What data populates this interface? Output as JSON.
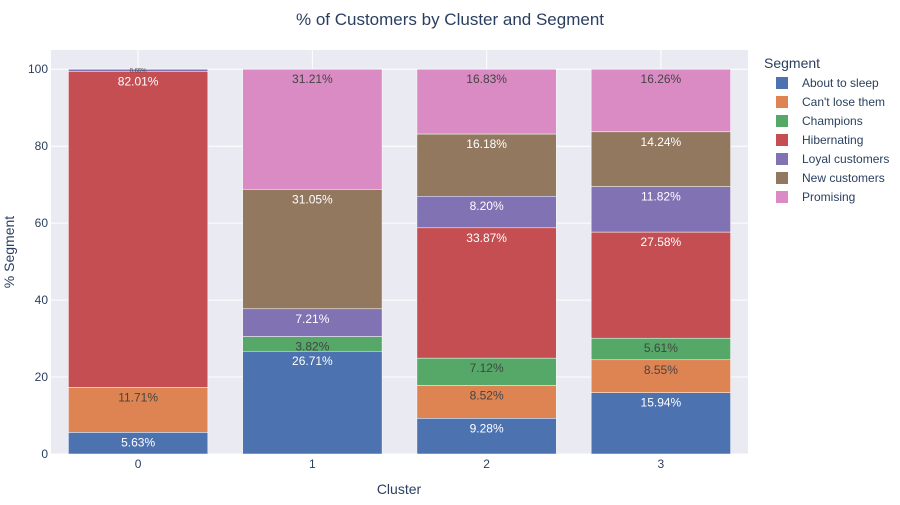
{
  "chart_data": {
    "type": "bar",
    "stacked": true,
    "title": "% of Customers by Cluster and Segment",
    "xlabel": "Cluster",
    "ylabel": "% Segment",
    "ylim": [
      0,
      105
    ],
    "yticks": [
      0,
      20,
      40,
      60,
      80,
      100
    ],
    "grid": true,
    "legend_title": "Segment",
    "legend_position": "right",
    "categories": [
      "0",
      "1",
      "2",
      "3"
    ],
    "series": [
      {
        "name": "About to sleep",
        "color": "#4C72B0",
        "values": [
          5.63,
          26.71,
          9.28,
          15.94
        ],
        "labels": [
          "5.63%",
          "26.71%",
          "9.28%",
          "15.94%"
        ]
      },
      {
        "name": "Can't lose them",
        "color": "#DD8452",
        "values": [
          11.71,
          0,
          8.52,
          8.55
        ],
        "labels": [
          "11.71%",
          "",
          "8.52%",
          "8.55%"
        ]
      },
      {
        "name": "Champions",
        "color": "#55A868",
        "values": [
          0,
          3.82,
          7.12,
          5.61
        ],
        "labels": [
          "",
          "3.82%",
          "7.12%",
          "5.61%"
        ]
      },
      {
        "name": "Hibernating",
        "color": "#C44E52",
        "values": [
          82.01,
          0,
          33.87,
          27.58
        ],
        "labels": [
          "82.01%",
          "",
          "33.87%",
          "27.58%"
        ]
      },
      {
        "name": "Loyal customers",
        "color": "#8172B3",
        "values": [
          0.65,
          7.21,
          8.2,
          11.82
        ],
        "labels": [
          "0.65%",
          "7.21%",
          "8.20%",
          "11.82%"
        ]
      },
      {
        "name": "New customers",
        "color": "#937860",
        "values": [
          0,
          31.05,
          16.18,
          14.24
        ],
        "labels": [
          "",
          "31.05%",
          "16.18%",
          "14.24%"
        ]
      },
      {
        "name": "Promising",
        "color": "#DA8BC3",
        "values": [
          0,
          31.21,
          16.83,
          16.26
        ],
        "labels": [
          "",
          "31.21%",
          "16.83%",
          "16.26%"
        ]
      }
    ]
  },
  "colors": {
    "plot_background": "#EAEAF2",
    "gridline": "#FFFFFF",
    "label_light": "#FFFFFF",
    "label_dark": "#444444",
    "title_text": "#2a3f5f"
  }
}
